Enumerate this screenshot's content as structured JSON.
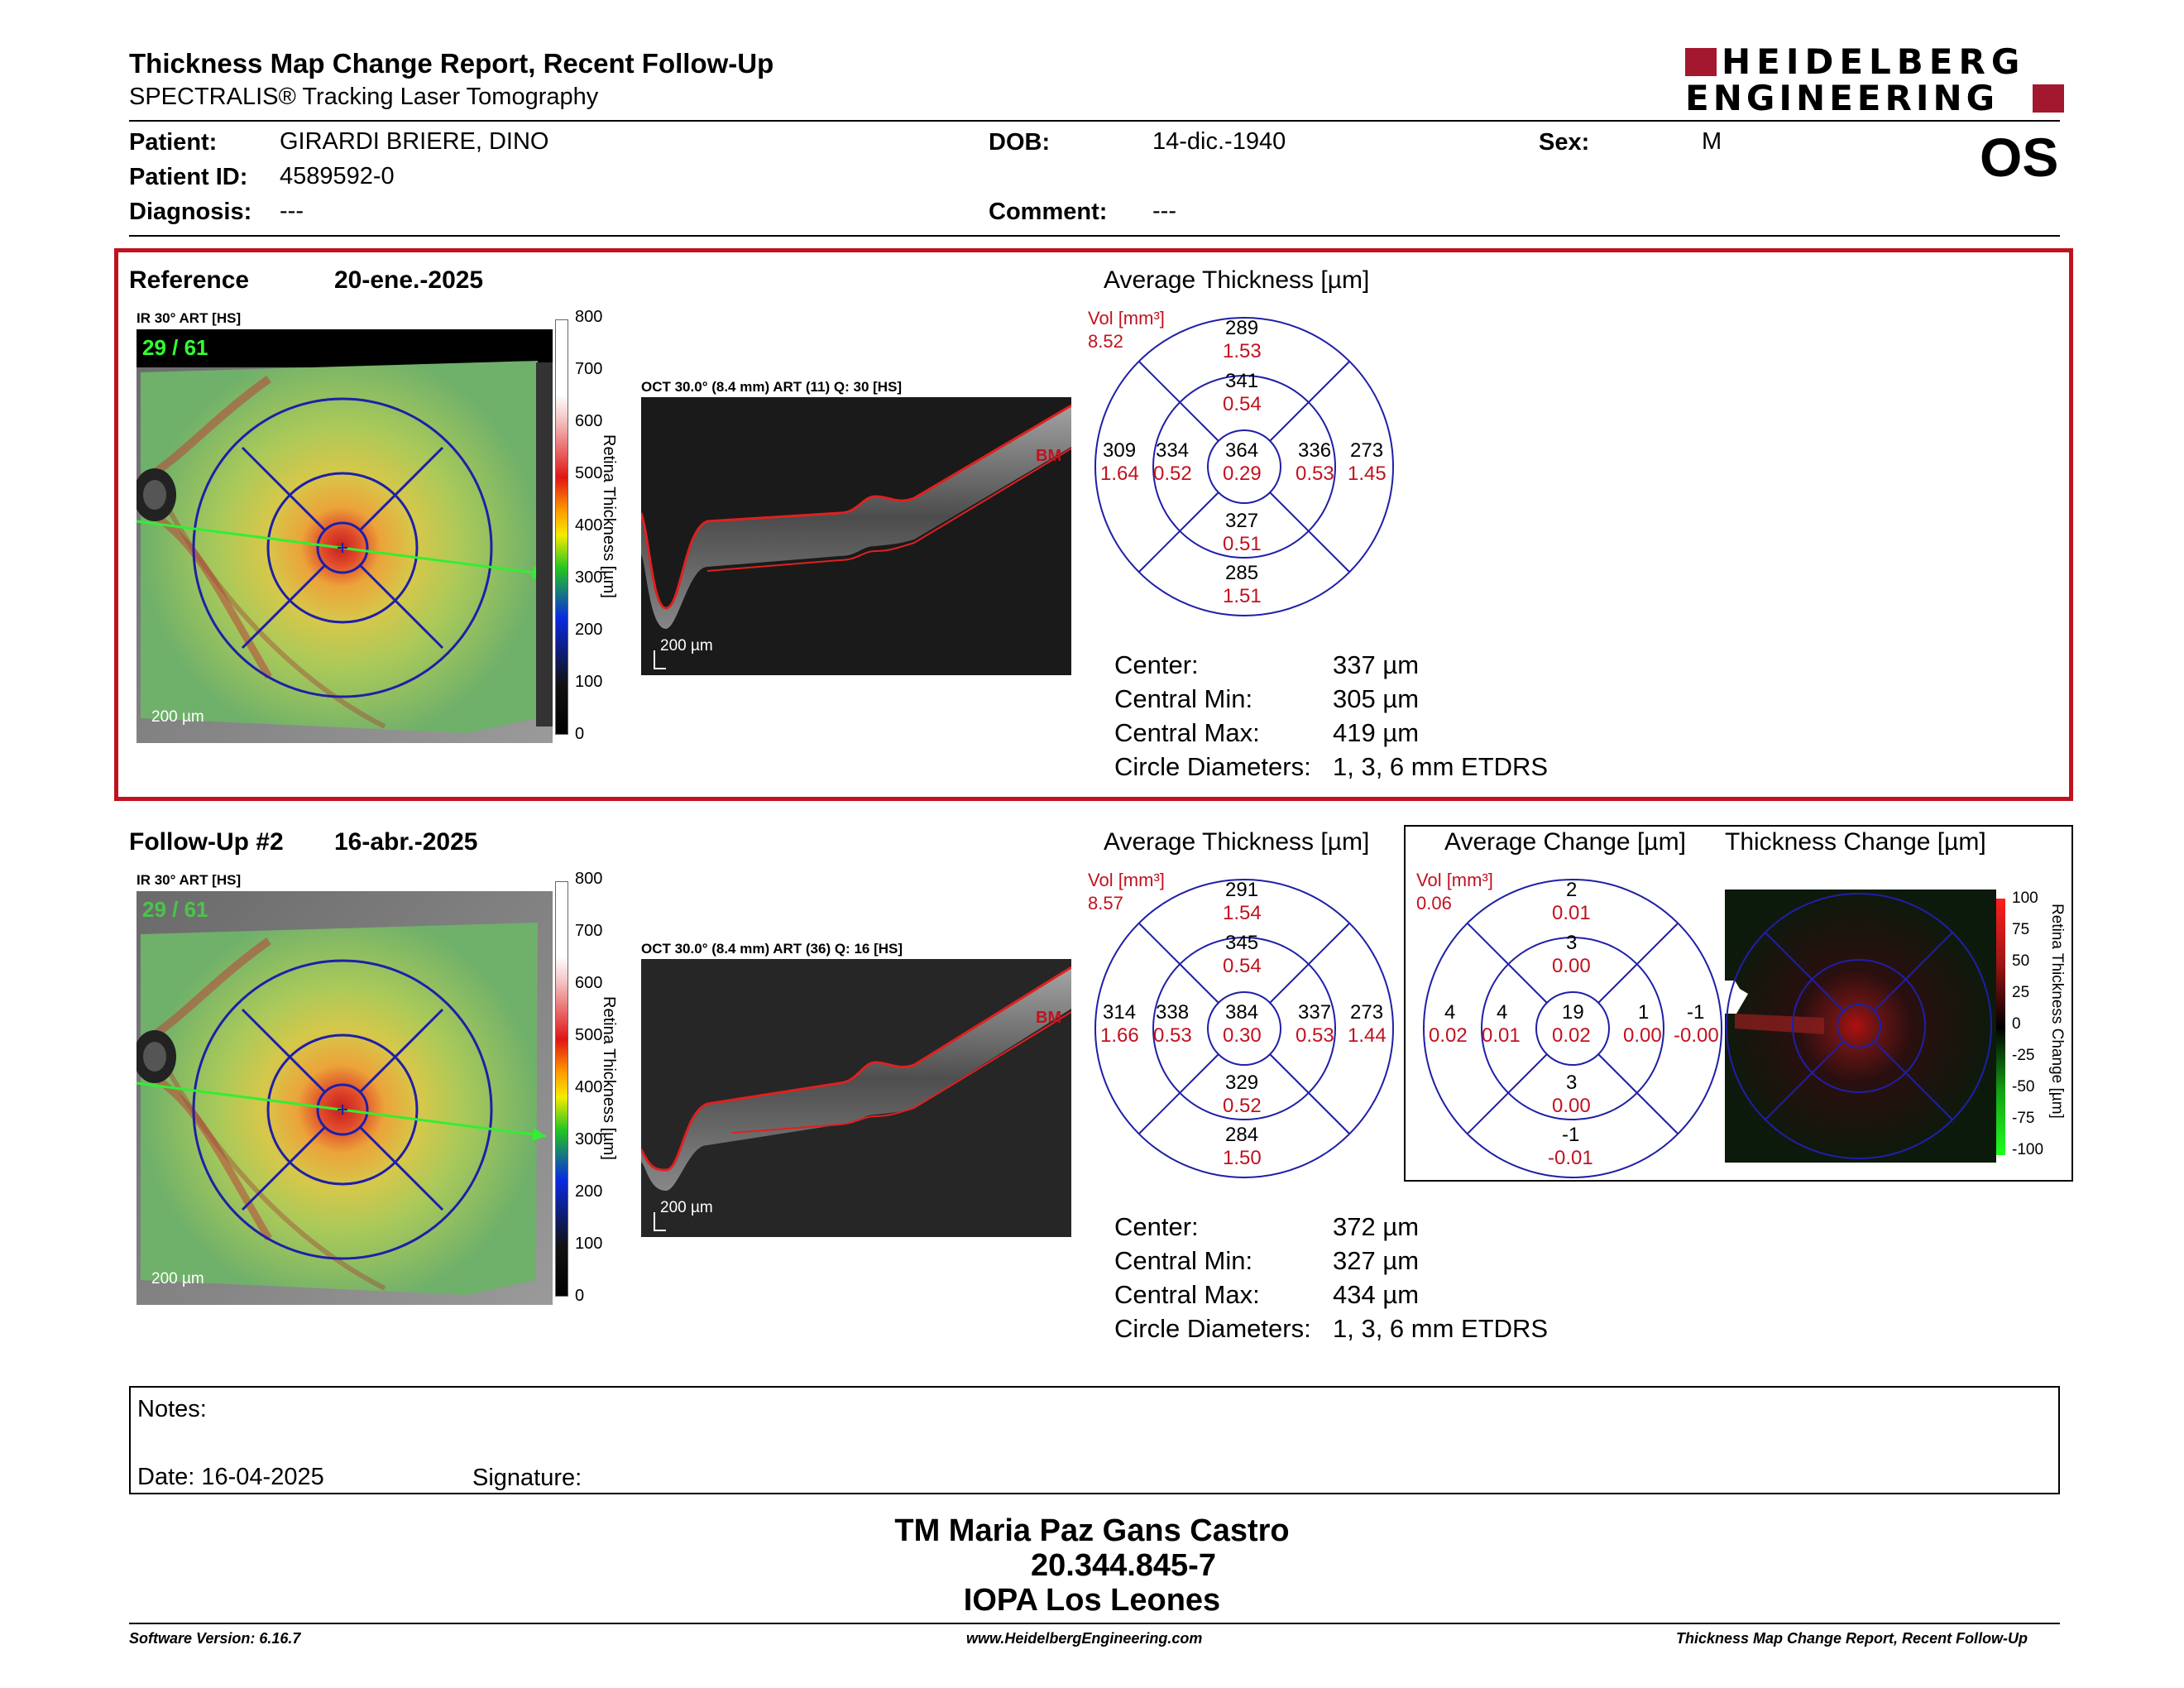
{
  "header": {
    "title": "Thickness Map Change Report, Recent Follow-Up",
    "subtitle": "SPECTRALIS® Tracking Laser Tomography",
    "brand_line1": "HEIDELBERG",
    "brand_line2": "ENGINEERING",
    "brand_color": "#a3172f",
    "eye": "OS"
  },
  "patient": {
    "name_label": "Patient:",
    "name": "GIRARDI BRIERE, DINO",
    "id_label": "Patient ID:",
    "id": "4589592-0",
    "diagnosis_label": "Diagnosis:",
    "diagnosis": "---",
    "dob_label": "DOB:",
    "dob": "14-dic.-1940",
    "comment_label": "Comment:",
    "comment": "---",
    "sex_label": "Sex:",
    "sex": "M"
  },
  "reference": {
    "label": "Reference",
    "date": "20-ene.-2025",
    "ir_caption": "IR 30° ART [HS]",
    "frame": "29 / 61",
    "oct_caption": "OCT 30.0° (8.4 mm) ART (11) Q: 30 [HS]",
    "scale_bar": "200 µm",
    "bm": "BM",
    "colorbar_ticks": [
      "800",
      "700",
      "600",
      "500",
      "400",
      "300",
      "200",
      "100",
      "0"
    ],
    "colorbar_label": "Retina Thickness [µm]",
    "avg_title": "Average Thickness [µm]",
    "vol_label": "Vol [mm³]",
    "vol_total": "8.52",
    "etdrs": {
      "outer_sup": [
        "289",
        "1.53"
      ],
      "inner_sup": [
        "341",
        "0.54"
      ],
      "outer_temp": [
        "309",
        "1.64"
      ],
      "inner_temp": [
        "334",
        "0.52"
      ],
      "center": [
        "364",
        "0.29"
      ],
      "inner_nas": [
        "336",
        "0.53"
      ],
      "outer_nas": [
        "273",
        "1.45"
      ],
      "inner_inf": [
        "327",
        "0.51"
      ],
      "outer_inf": [
        "285",
        "1.51"
      ]
    },
    "stats": [
      {
        "label": "Center:",
        "value": "337 µm"
      },
      {
        "label": "Central Min:",
        "value": "305 µm"
      },
      {
        "label": "Central Max:",
        "value": "419 µm"
      },
      {
        "label": "Circle Diameters:",
        "value": "1, 3, 6 mm ETDRS"
      }
    ]
  },
  "followup": {
    "label": "Follow-Up #2",
    "date": "16-abr.-2025",
    "ir_caption": "IR 30° ART [HS]",
    "frame": "29 / 61",
    "oct_caption": "OCT 30.0° (8.4 mm) ART (36) Q: 16 [HS]",
    "scale_bar": "200 µm",
    "bm": "BM",
    "colorbar_ticks": [
      "800",
      "700",
      "600",
      "500",
      "400",
      "300",
      "200",
      "100",
      "0"
    ],
    "colorbar_label": "Retina Thickness [µm]",
    "avg_title": "Average Thickness [µm]",
    "vol_label": "Vol [mm³]",
    "vol_total": "8.57",
    "etdrs": {
      "outer_sup": [
        "291",
        "1.54"
      ],
      "inner_sup": [
        "345",
        "0.54"
      ],
      "outer_temp": [
        "314",
        "1.66"
      ],
      "inner_temp": [
        "338",
        "0.53"
      ],
      "center": [
        "384",
        "0.30"
      ],
      "inner_nas": [
        "337",
        "0.53"
      ],
      "outer_nas": [
        "273",
        "1.44"
      ],
      "inner_inf": [
        "329",
        "0.52"
      ],
      "outer_inf": [
        "284",
        "1.50"
      ]
    },
    "stats": [
      {
        "label": "Center:",
        "value": "372 µm"
      },
      {
        "label": "Central Min:",
        "value": "327 µm"
      },
      {
        "label": "Central Max:",
        "value": "434 µm"
      },
      {
        "label": "Circle Diameters:",
        "value": "1, 3, 6 mm ETDRS"
      }
    ],
    "change_title": "Average Change [µm]",
    "change_vol_label": "Vol [mm³]",
    "change_vol_total": "0.06",
    "change_etdrs": {
      "outer_sup": [
        "2",
        "0.01"
      ],
      "inner_sup": [
        "3",
        "0.00"
      ],
      "outer_temp": [
        "4",
        "0.02"
      ],
      "inner_temp": [
        "4",
        "0.01"
      ],
      "center": [
        "19",
        "0.02"
      ],
      "inner_nas": [
        "1",
        "0.00"
      ],
      "outer_nas": [
        "-1",
        "-0.00"
      ],
      "inner_inf": [
        "3",
        "0.00"
      ],
      "outer_inf": [
        "-1",
        "-0.01"
      ]
    },
    "thickness_change_title": "Thickness Change [µm]",
    "change_ticks": [
      "100",
      "75",
      "50",
      "25",
      "0",
      "-25",
      "-50",
      "-75",
      "-100"
    ],
    "change_colorbar_label": "Retina Thickness Change [µm]"
  },
  "notes": {
    "notes_label": "Notes:",
    "date_label": "Date: 16-04-2025",
    "signature_label": "Signature:"
  },
  "signature_block": {
    "name": "TM Maria Paz Gans Castro",
    "rut": "20.344.845-7",
    "institution": "IOPA Los Leones"
  },
  "footer": {
    "software": "Software Version: 6.16.7",
    "website": "www.HeidelbergEngineering.com",
    "report": "Thickness Map Change Report, Recent Follow-Up"
  }
}
